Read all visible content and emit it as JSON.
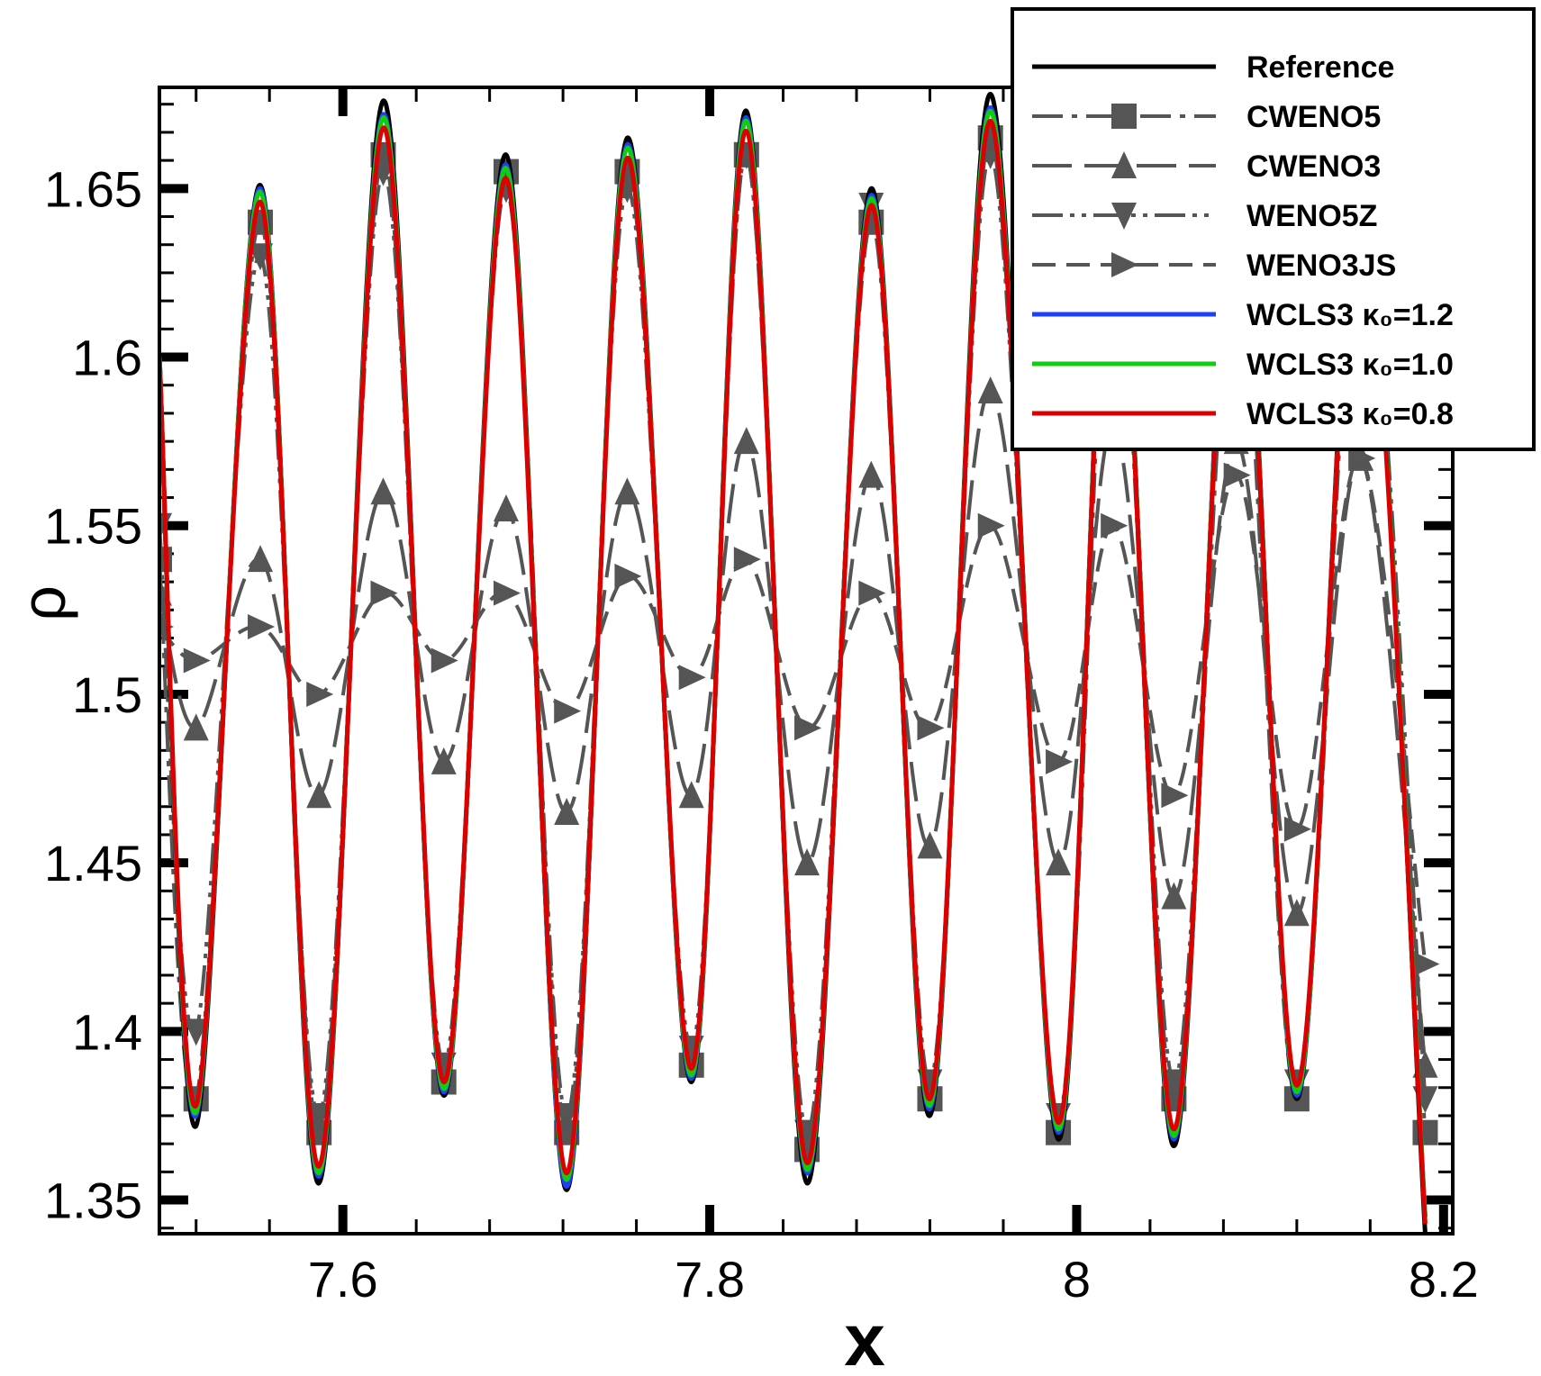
{
  "chart_data": {
    "type": "line",
    "xlabel": "x",
    "ylabel": "ρ",
    "xlim": [
      7.5,
      8.205
    ],
    "ylim": [
      1.34,
      1.68
    ],
    "x_ticks": [
      7.6,
      7.8,
      8.0,
      8.2
    ],
    "x_tick_labels": [
      "7.6",
      "7.8",
      "8",
      "8.2"
    ],
    "y_ticks": [
      1.35,
      1.4,
      1.45,
      1.5,
      1.55,
      1.6,
      1.65
    ],
    "y_tick_labels": [
      "1.35",
      "1.4",
      "1.45",
      "1.5",
      "1.55",
      "1.6",
      "1.65"
    ],
    "grid": false,
    "legend_position": "top-right",
    "series": [
      {
        "name": "Reference",
        "color": "#000000",
        "style": "solid",
        "marker": "none",
        "x": [
          7.5,
          7.52,
          7.555,
          7.587,
          7.622,
          7.655,
          7.689,
          7.722,
          7.755,
          7.79,
          7.82,
          7.853,
          7.888,
          7.92,
          7.953,
          7.99,
          8.02,
          8.053,
          8.087,
          8.12,
          8.155,
          8.19
        ],
        "y": [
          1.6,
          1.372,
          1.651,
          1.355,
          1.676,
          1.381,
          1.66,
          1.353,
          1.665,
          1.385,
          1.673,
          1.355,
          1.65,
          1.375,
          1.678,
          1.368,
          1.66,
          1.366,
          1.66,
          1.38,
          1.655,
          1.34
        ]
      },
      {
        "name": "CWENO5",
        "color": "#555555",
        "style": "dash-dot",
        "marker": "square",
        "x": [
          7.5,
          7.52,
          7.555,
          7.587,
          7.622,
          7.655,
          7.689,
          7.722,
          7.755,
          7.79,
          7.82,
          7.853,
          7.888,
          7.92,
          7.953,
          7.99,
          8.02,
          8.053,
          8.087,
          8.12,
          8.155,
          8.19
        ],
        "y": [
          1.54,
          1.38,
          1.64,
          1.37,
          1.66,
          1.385,
          1.655,
          1.37,
          1.655,
          1.39,
          1.66,
          1.365,
          1.64,
          1.38,
          1.665,
          1.37,
          1.64,
          1.38,
          1.63,
          1.38,
          1.64,
          1.37
        ]
      },
      {
        "name": "CWENO3",
        "color": "#555555",
        "style": "long-dash",
        "marker": "triangle-up",
        "x": [
          7.5,
          7.52,
          7.555,
          7.587,
          7.622,
          7.655,
          7.689,
          7.722,
          7.755,
          7.79,
          7.82,
          7.853,
          7.888,
          7.92,
          7.953,
          7.99,
          8.02,
          8.053,
          8.087,
          8.12,
          8.155,
          8.19
        ],
        "y": [
          1.53,
          1.49,
          1.54,
          1.47,
          1.56,
          1.48,
          1.555,
          1.465,
          1.56,
          1.47,
          1.575,
          1.45,
          1.565,
          1.455,
          1.59,
          1.45,
          1.58,
          1.44,
          1.575,
          1.435,
          1.57,
          1.39
        ]
      },
      {
        "name": "WENO5Z",
        "color": "#555555",
        "style": "dash-dot-dot",
        "marker": "triangle-down",
        "x": [
          7.5,
          7.52,
          7.555,
          7.587,
          7.622,
          7.655,
          7.689,
          7.722,
          7.755,
          7.79,
          7.82,
          7.853,
          7.888,
          7.92,
          7.953,
          7.99,
          8.02,
          8.053,
          8.087,
          8.12,
          8.155,
          8.19
        ],
        "y": [
          1.55,
          1.4,
          1.63,
          1.375,
          1.655,
          1.39,
          1.65,
          1.375,
          1.65,
          1.395,
          1.66,
          1.37,
          1.645,
          1.385,
          1.66,
          1.375,
          1.65,
          1.385,
          1.64,
          1.385,
          1.645,
          1.38
        ]
      },
      {
        "name": "WENO3JS",
        "color": "#555555",
        "style": "dash",
        "marker": "triangle-right",
        "x": [
          7.5,
          7.52,
          7.555,
          7.587,
          7.622,
          7.655,
          7.689,
          7.722,
          7.755,
          7.79,
          7.82,
          7.853,
          7.888,
          7.92,
          7.953,
          7.99,
          8.02,
          8.053,
          8.087,
          8.12,
          8.155,
          8.19
        ],
        "y": [
          1.52,
          1.51,
          1.52,
          1.5,
          1.53,
          1.51,
          1.53,
          1.495,
          1.535,
          1.505,
          1.54,
          1.49,
          1.53,
          1.49,
          1.55,
          1.48,
          1.55,
          1.47,
          1.565,
          1.46,
          1.57,
          1.42
        ]
      },
      {
        "name": "WCLS3 κ₀=1.2",
        "color": "#1f3fff",
        "style": "solid",
        "marker": "none",
        "x": [
          7.5,
          7.52,
          7.555,
          7.587,
          7.622,
          7.655,
          7.689,
          7.722,
          7.755,
          7.79,
          7.82,
          7.853,
          7.888,
          7.92,
          7.953,
          7.99,
          8.02,
          8.053,
          8.087,
          8.12,
          8.155,
          8.19
        ],
        "y": [
          1.6,
          1.375,
          1.65,
          1.357,
          1.672,
          1.382,
          1.657,
          1.354,
          1.663,
          1.386,
          1.671,
          1.358,
          1.648,
          1.377,
          1.674,
          1.37,
          1.658,
          1.368,
          1.658,
          1.381,
          1.652,
          1.345
        ]
      },
      {
        "name": "WCLS3 κ₀=1.0",
        "color": "#11cc11",
        "style": "solid",
        "marker": "none",
        "x": [
          7.5,
          7.52,
          7.555,
          7.587,
          7.622,
          7.655,
          7.689,
          7.722,
          7.755,
          7.79,
          7.82,
          7.853,
          7.888,
          7.92,
          7.953,
          7.99,
          8.02,
          8.053,
          8.087,
          8.12,
          8.155,
          8.19
        ],
        "y": [
          1.6,
          1.376,
          1.649,
          1.358,
          1.671,
          1.383,
          1.656,
          1.356,
          1.662,
          1.387,
          1.67,
          1.359,
          1.647,
          1.378,
          1.673,
          1.371,
          1.657,
          1.369,
          1.657,
          1.382,
          1.651,
          1.345
        ]
      },
      {
        "name": "WCLS3 κ₀=0.8",
        "color": "#dd0000",
        "style": "solid",
        "marker": "none",
        "x": [
          7.5,
          7.52,
          7.555,
          7.587,
          7.622,
          7.655,
          7.689,
          7.722,
          7.755,
          7.79,
          7.82,
          7.853,
          7.888,
          7.92,
          7.953,
          7.99,
          8.02,
          8.053,
          8.087,
          8.12,
          8.155,
          8.19
        ],
        "y": [
          1.6,
          1.378,
          1.646,
          1.36,
          1.668,
          1.385,
          1.653,
          1.358,
          1.659,
          1.389,
          1.667,
          1.361,
          1.645,
          1.38,
          1.67,
          1.373,
          1.654,
          1.371,
          1.654,
          1.384,
          1.649,
          1.343
        ]
      }
    ]
  }
}
